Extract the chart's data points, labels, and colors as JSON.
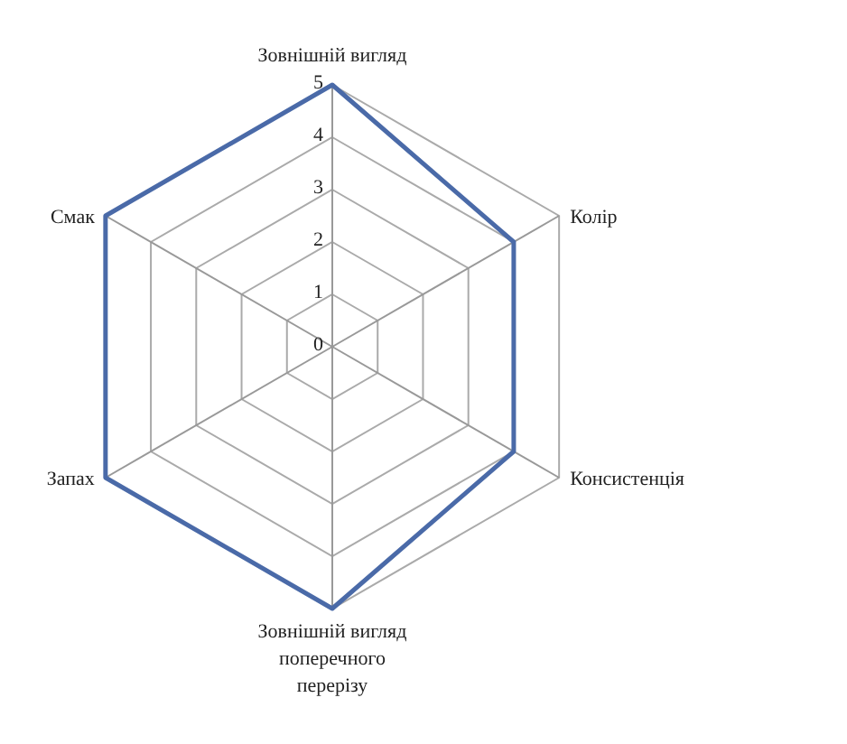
{
  "chart_data": {
    "type": "radar",
    "categories": [
      "Зовнішній вигляд",
      "Колір",
      "Консистенція",
      "Зовнішній вигляд поперечного перерізу",
      "Запах",
      "Смак"
    ],
    "series": [
      {
        "color": "#4a6aa8",
        "values": [
          5,
          4,
          4,
          5,
          5,
          5
        ]
      }
    ],
    "ylim": [
      0,
      5
    ],
    "yticks": [
      0,
      1,
      2,
      3,
      4,
      5
    ],
    "grid": true
  }
}
